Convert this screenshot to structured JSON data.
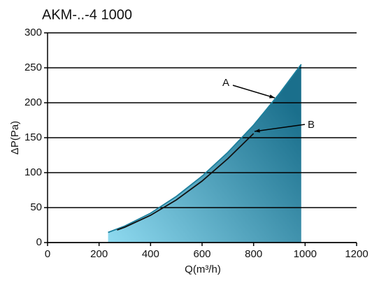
{
  "chart_data": {
    "type": "area",
    "title": "AKM-..-4 1000",
    "x_label": "Q(m³/h)",
    "y_label": "ΔP(Pa)",
    "xlim": [
      0,
      1200
    ],
    "xticks": [
      0,
      200,
      400,
      600,
      800,
      1000,
      1200
    ],
    "ylim": [
      0,
      300
    ],
    "yticks": [
      0,
      50,
      100,
      150,
      200,
      250,
      300
    ],
    "grid": true,
    "series": [
      {
        "name": "A",
        "color": "#1d7f9c",
        "fill_from": "#8fdaf0",
        "fill_to": "#1a6f8c",
        "x": [
          235,
          300,
          400,
          500,
          600,
          700,
          800,
          900,
          985
        ],
        "values": [
          14.5,
          23.7,
          42,
          66,
          95,
          129,
          168,
          213,
          255
        ]
      },
      {
        "name": "B",
        "color": "#111111",
        "x": [
          270,
          300,
          400,
          500,
          600,
          700,
          800
        ],
        "values": [
          18,
          22,
          39,
          61,
          88,
          120,
          156
        ]
      }
    ]
  }
}
